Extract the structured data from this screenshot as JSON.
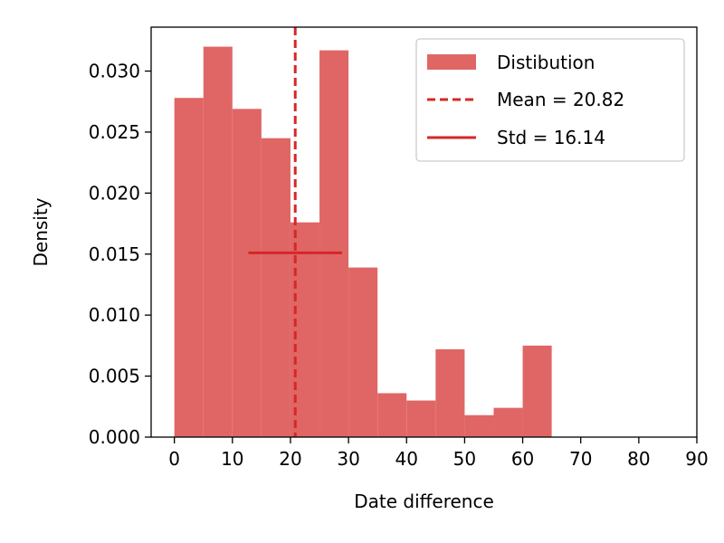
{
  "chart_data": {
    "type": "bar",
    "subtype": "histogram",
    "title": "",
    "xlabel": "Date difference",
    "ylabel": "Density",
    "xlim": [
      -4,
      90
    ],
    "ylim": [
      0,
      0.0336
    ],
    "xticks": [
      0,
      10,
      20,
      30,
      40,
      50,
      60,
      70,
      80,
      90
    ],
    "xtick_labels": [
      "0",
      "10",
      "20",
      "30",
      "40",
      "50",
      "60",
      "70",
      "80",
      "90"
    ],
    "yticks": [
      0,
      0.005,
      0.01,
      0.015,
      0.02,
      0.025,
      0.03
    ],
    "ytick_labels": [
      "0.000",
      "0.005",
      "0.010",
      "0.015",
      "0.020",
      "0.025",
      "0.030"
    ],
    "bin_edges": [
      0,
      5,
      10,
      15,
      20,
      25,
      30,
      35,
      40,
      45,
      50,
      55,
      60,
      65
    ],
    "series": [
      {
        "name": "Distibution",
        "values": [
          0.0278,
          0.032,
          0.0269,
          0.0245,
          0.0176,
          0.0317,
          0.0139,
          0.0036,
          0.003,
          0.0072,
          0.0018,
          0.0024,
          0.0075
        ]
      }
    ],
    "mean": {
      "label": "Mean = 20.82",
      "value": 20.82
    },
    "std": {
      "label": "Std = 16.14",
      "value": 16.14,
      "y": 0.0151
    },
    "legend_position": "top-right",
    "grid": false,
    "colors": {
      "bars": "#e06666",
      "lines": "#d62728"
    }
  }
}
